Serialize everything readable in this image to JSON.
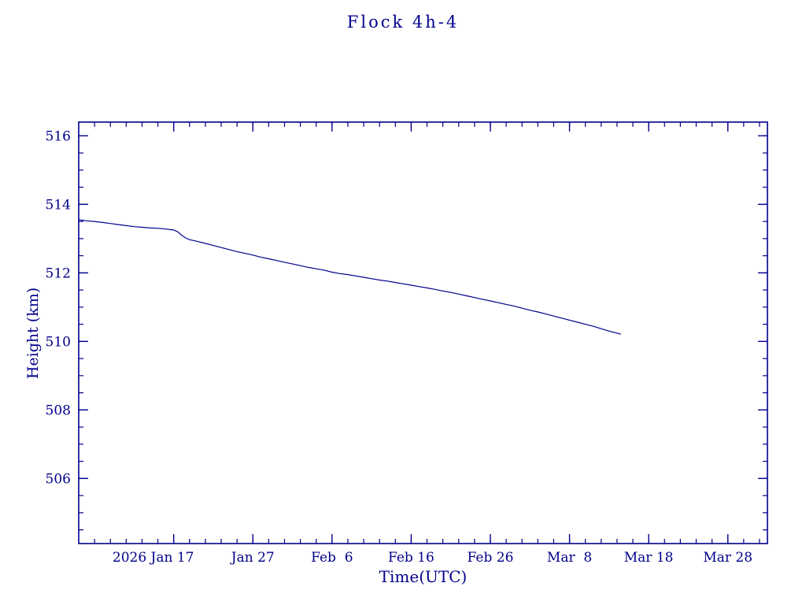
{
  "chart_data": {
    "type": "line",
    "title": "Flock 4h-4",
    "xlabel": "Time(UTC)",
    "ylabel": "Height (km)",
    "color": "#00008B",
    "x_unit": "days since 2026-01-01",
    "xlim": [
      5,
      92
    ],
    "ylim": [
      504.1,
      516.4
    ],
    "x_minor_step": 2,
    "y_minor_step": 0.5,
    "x_ticks": [
      {
        "day": 17,
        "label": "2026 Jan 17"
      },
      {
        "day": 27,
        "label": "Jan 27"
      },
      {
        "day": 37,
        "label": "Feb  6"
      },
      {
        "day": 47,
        "label": "Feb 16"
      },
      {
        "day": 57,
        "label": "Feb 26"
      },
      {
        "day": 67,
        "label": "Mar  8"
      },
      {
        "day": 77,
        "label": "Mar 18"
      },
      {
        "day": 87,
        "label": "Mar 28"
      }
    ],
    "y_ticks": [
      506,
      508,
      510,
      512,
      514,
      516
    ],
    "series": [
      {
        "name": "Flock 4h-4 height",
        "points": [
          [
            5,
            513.55
          ],
          [
            6,
            513.52
          ],
          [
            7,
            513.5
          ],
          [
            8,
            513.47
          ],
          [
            9,
            513.44
          ],
          [
            10,
            513.41
          ],
          [
            11,
            513.38
          ],
          [
            12,
            513.35
          ],
          [
            13,
            513.33
          ],
          [
            14,
            513.31
          ],
          [
            15,
            513.3
          ],
          [
            16,
            513.28
          ],
          [
            17,
            513.25
          ],
          [
            17.5,
            513.2
          ],
          [
            18,
            513.1
          ],
          [
            18.5,
            513.02
          ],
          [
            19,
            512.97
          ],
          [
            20,
            512.92
          ],
          [
            21,
            512.86
          ],
          [
            22,
            512.8
          ],
          [
            23,
            512.74
          ],
          [
            24,
            512.68
          ],
          [
            25,
            512.62
          ],
          [
            26,
            512.57
          ],
          [
            27,
            512.52
          ],
          [
            28,
            512.46
          ],
          [
            29,
            512.41
          ],
          [
            30,
            512.36
          ],
          [
            31,
            512.31
          ],
          [
            32,
            512.26
          ],
          [
            33,
            512.21
          ],
          [
            34,
            512.16
          ],
          [
            35,
            512.12
          ],
          [
            36,
            512.08
          ],
          [
            37,
            512.02
          ],
          [
            38,
            511.98
          ],
          [
            39,
            511.95
          ],
          [
            40,
            511.91
          ],
          [
            41,
            511.87
          ],
          [
            42,
            511.83
          ],
          [
            43,
            511.79
          ],
          [
            44,
            511.76
          ],
          [
            45,
            511.72
          ],
          [
            46,
            511.68
          ],
          [
            47,
            511.64
          ],
          [
            48,
            511.6
          ],
          [
            49,
            511.56
          ],
          [
            50,
            511.52
          ],
          [
            51,
            511.47
          ],
          [
            52,
            511.43
          ],
          [
            53,
            511.38
          ],
          [
            54,
            511.33
          ],
          [
            55,
            511.28
          ],
          [
            56,
            511.23
          ],
          [
            57,
            511.18
          ],
          [
            58,
            511.13
          ],
          [
            59,
            511.08
          ],
          [
            60,
            511.03
          ],
          [
            61,
            510.97
          ],
          [
            62,
            510.91
          ],
          [
            63,
            510.86
          ],
          [
            64,
            510.8
          ],
          [
            65,
            510.74
          ],
          [
            66,
            510.68
          ],
          [
            67,
            510.62
          ],
          [
            68,
            510.56
          ],
          [
            69,
            510.5
          ],
          [
            70,
            510.44
          ],
          [
            71,
            510.37
          ],
          [
            72,
            510.3
          ],
          [
            73,
            510.24
          ],
          [
            73.5,
            510.21
          ]
        ]
      }
    ]
  }
}
